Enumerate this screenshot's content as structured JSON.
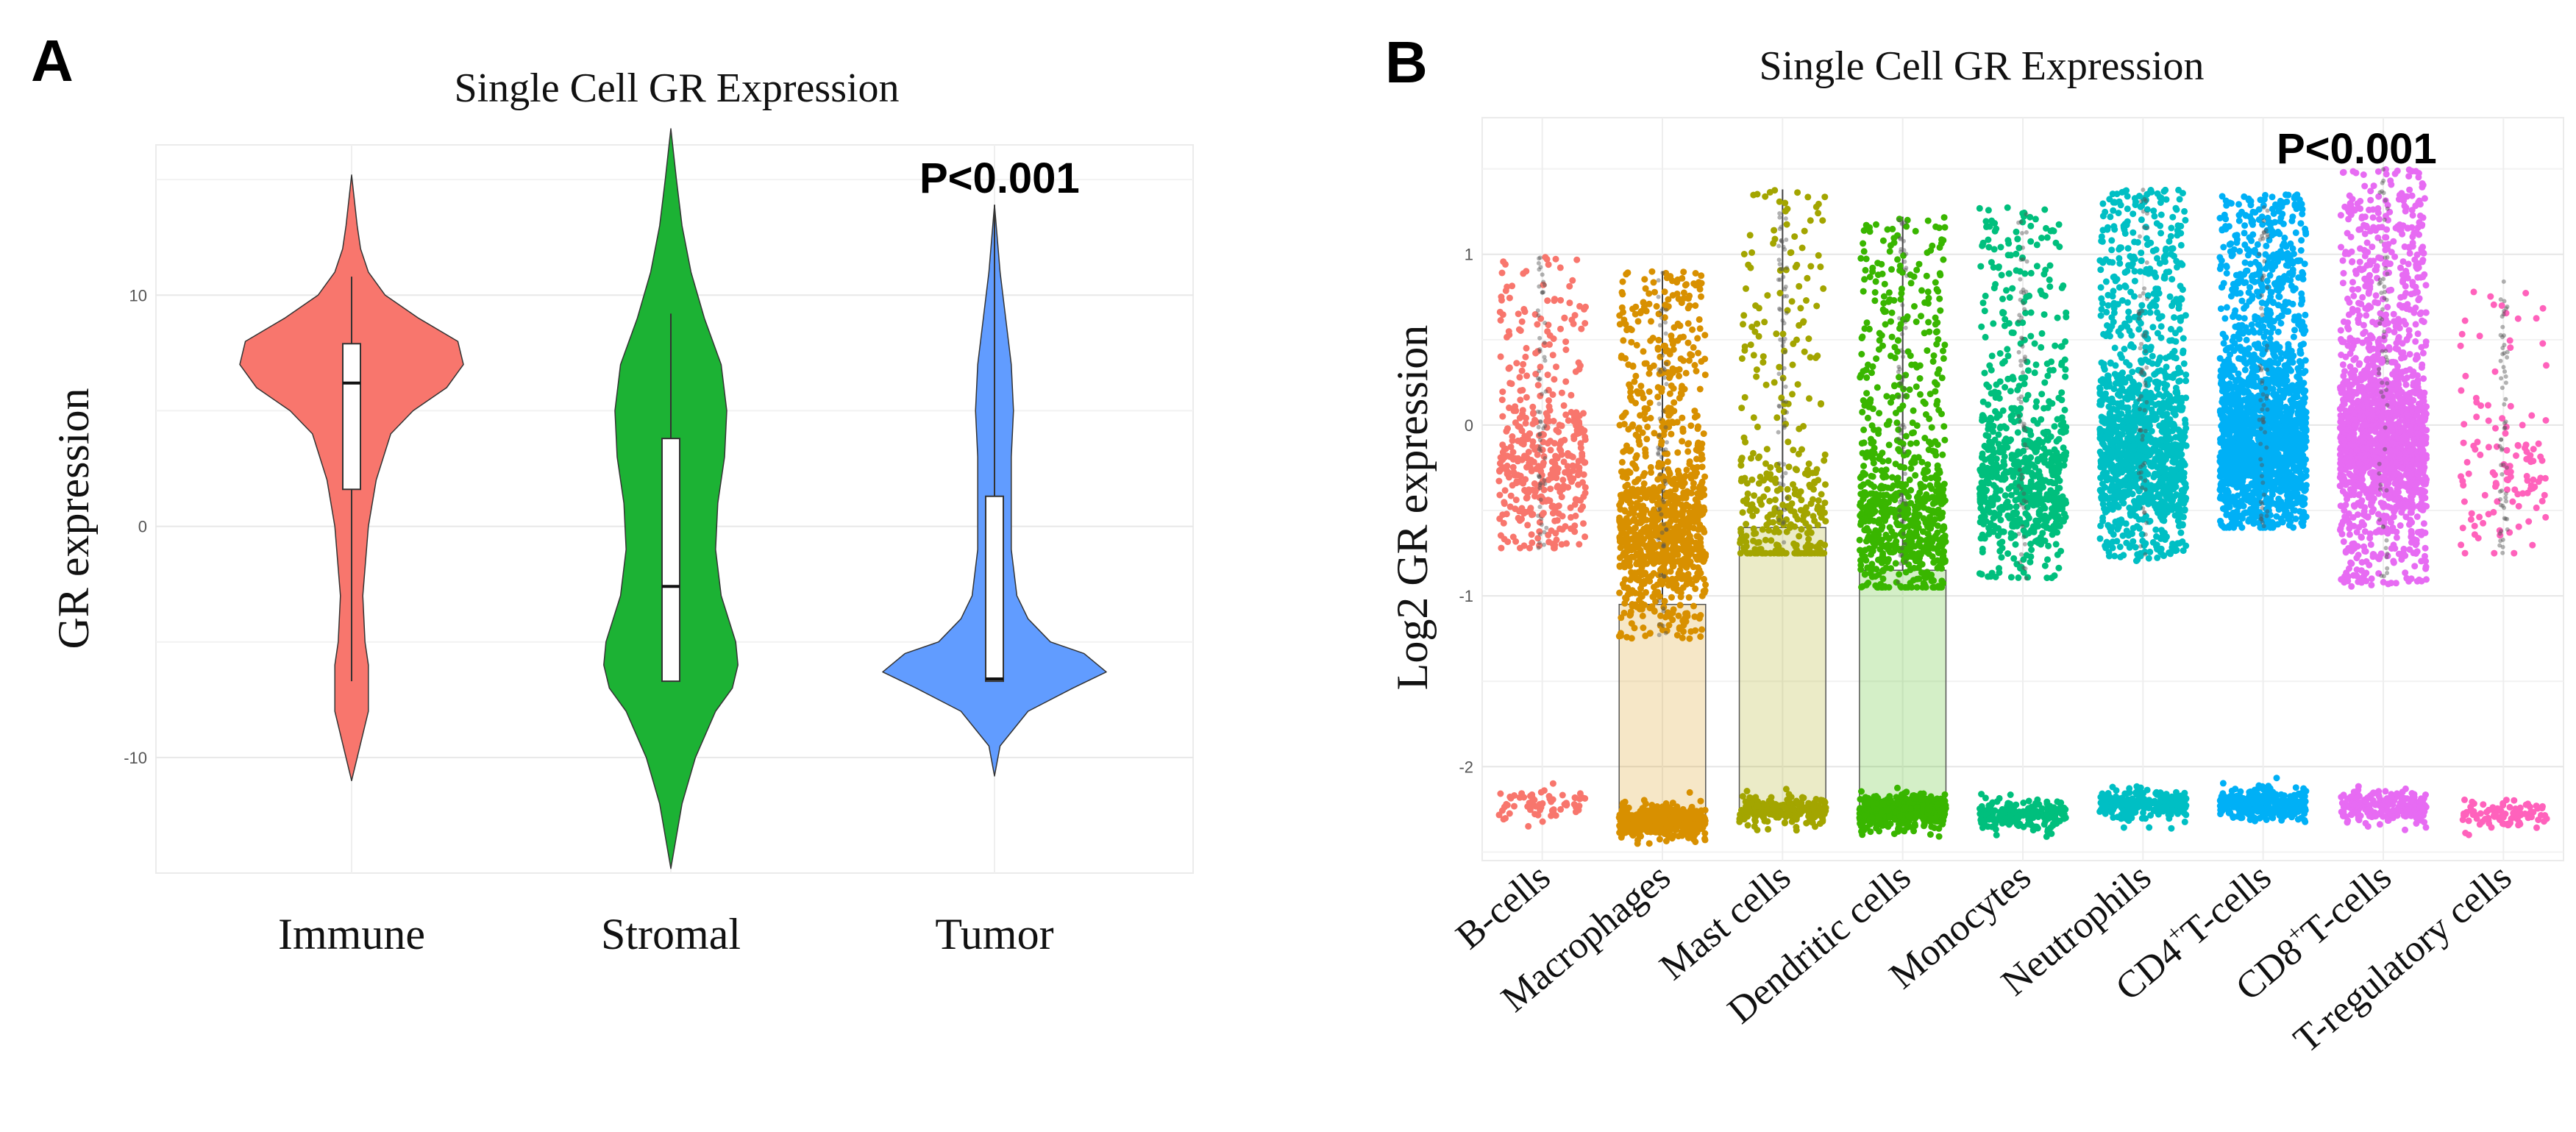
{
  "figure": {
    "panel_a_letter": "A",
    "panel_b_letter": "B"
  },
  "chart_data": [
    {
      "id": "A",
      "type": "violin",
      "title": "Single Cell GR Expression",
      "xlabel": "",
      "ylabel": "GR expression",
      "annotation": "P<0.001",
      "ylim": [
        -15,
        16.5
      ],
      "yticks": [
        10,
        0,
        -10
      ],
      "ytick_labels": [
        "10",
        "0",
        "-10"
      ],
      "categories": [
        "Immune",
        "Stromal",
        "Tumor"
      ],
      "colors": [
        "#F8766D",
        "#1CB234",
        "#619CFF"
      ],
      "violins": [
        {
          "name": "Immune",
          "min": -11,
          "max": 15.2,
          "profile": [
            [
              -11,
              0
            ],
            [
              -10,
              0.05
            ],
            [
              -8,
              0.15
            ],
            [
              -6,
              0.15
            ],
            [
              -5,
              0.12
            ],
            [
              -3,
              0.1
            ],
            [
              0,
              0.15
            ],
            [
              2,
              0.22
            ],
            [
              4,
              0.35
            ],
            [
              5,
              0.55
            ],
            [
              6,
              0.85
            ],
            [
              7,
              1.0
            ],
            [
              8,
              0.95
            ],
            [
              9,
              0.6
            ],
            [
              10,
              0.3
            ],
            [
              11,
              0.15
            ],
            [
              12,
              0.08
            ],
            [
              13,
              0.05
            ],
            [
              15.2,
              0
            ]
          ],
          "box": {
            "q1": 1.6,
            "median": 6.2,
            "q3": 7.9,
            "whisker_low": -6.7,
            "whisker_high": 10.8
          }
        },
        {
          "name": "Stromal",
          "min": -14.8,
          "max": 17.2,
          "profile": [
            [
              -14.8,
              0
            ],
            [
              -12,
              0.1
            ],
            [
              -10,
              0.22
            ],
            [
              -8,
              0.4
            ],
            [
              -7,
              0.55
            ],
            [
              -6,
              0.6
            ],
            [
              -5,
              0.58
            ],
            [
              -3,
              0.45
            ],
            [
              -1,
              0.4
            ],
            [
              1,
              0.42
            ],
            [
              3,
              0.48
            ],
            [
              5,
              0.5
            ],
            [
              7,
              0.45
            ],
            [
              9,
              0.3
            ],
            [
              11,
              0.18
            ],
            [
              13,
              0.1
            ],
            [
              15,
              0.05
            ],
            [
              17.2,
              0
            ]
          ],
          "box": {
            "q1": -6.7,
            "median": -2.6,
            "q3": 3.8,
            "whisker_low": -6.7,
            "whisker_high": 9.2
          }
        },
        {
          "name": "Tumor",
          "min": -10.8,
          "max": 13.9,
          "profile": [
            [
              -10.8,
              0
            ],
            [
              -9.5,
              0.05
            ],
            [
              -8,
              0.3
            ],
            [
              -7,
              0.7
            ],
            [
              -6.3,
              1.0
            ],
            [
              -5.5,
              0.8
            ],
            [
              -5,
              0.5
            ],
            [
              -4,
              0.3
            ],
            [
              -3,
              0.2
            ],
            [
              -1,
              0.15
            ],
            [
              1,
              0.15
            ],
            [
              3,
              0.15
            ],
            [
              5,
              0.17
            ],
            [
              7,
              0.15
            ],
            [
              9,
              0.1
            ],
            [
              11,
              0.05
            ],
            [
              13.9,
              0
            ]
          ],
          "box": {
            "q1": -6.7,
            "median": -6.6,
            "q3": 1.3,
            "whisker_low": -6.7,
            "whisker_high": 13.9
          }
        }
      ]
    },
    {
      "id": "B",
      "type": "scatter",
      "title": "Single Cell GR Expression",
      "xlabel": "",
      "ylabel": "Log2 GR expression",
      "annotation": "P<0.001",
      "ylim": [
        -2.55,
        1.8
      ],
      "yticks": [
        1,
        0,
        -1,
        -2
      ],
      "ytick_labels": [
        "1",
        "0",
        "-1",
        "-2"
      ],
      "categories": [
        "B-cells",
        "Macrophages",
        "Mast cells",
        "Dendritic  cells",
        "Monocytes",
        "Neutrophils",
        "CD4+T-cells",
        "CD8+T-cells",
        "T-regulatory cells"
      ],
      "category_label_parts": [
        {
          "pre": "B-cells",
          "sup": "",
          "post": ""
        },
        {
          "pre": "Macrophages",
          "sup": "",
          "post": ""
        },
        {
          "pre": "Mast cells",
          "sup": "",
          "post": ""
        },
        {
          "pre": "Dendritic  cells",
          "sup": "",
          "post": ""
        },
        {
          "pre": "Monocytes",
          "sup": "",
          "post": ""
        },
        {
          "pre": "Neutrophils",
          "sup": "",
          "post": ""
        },
        {
          "pre": "CD4",
          "sup": "+",
          "post": "T-cells"
        },
        {
          "pre": "CD8",
          "sup": "+",
          "post": "T-cells"
        },
        {
          "pre": "T-regulatory cells",
          "sup": "",
          "post": ""
        }
      ],
      "colors": [
        "#F8766D",
        "#D89000",
        "#A3A500",
        "#39B600",
        "#00BF7D",
        "#00BFC4",
        "#00B0F6",
        "#E76BF3",
        "#FF62BC"
      ],
      "groups": [
        {
          "name": "B-cells",
          "n_upper": 420,
          "upper_min": -0.72,
          "upper_max": 1.0,
          "upper_center": -0.25,
          "n_lower": 70,
          "lower_y": -2.22,
          "box": null
        },
        {
          "name": "Macrophages",
          "n_upper": 1000,
          "upper_min": -1.25,
          "upper_max": 0.9,
          "upper_center": -0.65,
          "n_lower": 500,
          "lower_y": -2.32,
          "box": {
            "q1": -2.28,
            "median": -2.2,
            "q3": -1.05,
            "whisker_high": 0.9
          }
        },
        {
          "name": "Mast cells",
          "n_upper": 340,
          "upper_min": -0.75,
          "upper_max": 1.38,
          "upper_center": -0.6,
          "n_lower": 200,
          "lower_y": -2.25,
          "box": {
            "q1": -2.25,
            "median": -2.2,
            "q3": -0.6,
            "whisker_high": 1.38
          }
        },
        {
          "name": "Dendritic  cells",
          "n_upper": 780,
          "upper_min": -0.95,
          "upper_max": 1.22,
          "upper_center": -0.6,
          "n_lower": 450,
          "lower_y": -2.26,
          "box": {
            "q1": -2.25,
            "median": -2.2,
            "q3": -0.85,
            "whisker_high": 1.22
          }
        },
        {
          "name": "Monocytes",
          "n_upper": 720,
          "upper_min": -0.9,
          "upper_max": 1.28,
          "upper_center": -0.35,
          "n_lower": 220,
          "lower_y": -2.28,
          "box": null
        },
        {
          "name": "Neutrophils",
          "n_upper": 1300,
          "upper_min": -0.8,
          "upper_max": 1.38,
          "upper_center": -0.15,
          "n_lower": 230,
          "lower_y": -2.22,
          "box": null
        },
        {
          "name": "CD4+T-cells",
          "n_upper": 1900,
          "upper_min": -0.6,
          "upper_max": 1.35,
          "upper_center": -0.1,
          "n_lower": 280,
          "lower_y": -2.22,
          "box": null
        },
        {
          "name": "CD8+T-cells",
          "n_upper": 1700,
          "upper_min": -0.95,
          "upper_max": 1.5,
          "upper_center": -0.1,
          "n_lower": 230,
          "lower_y": -2.24,
          "box": null
        },
        {
          "name": "T-regulatory cells",
          "n_upper": 120,
          "upper_min": -0.75,
          "upper_max": 0.85,
          "upper_center": -0.3,
          "n_lower": 90,
          "lower_y": -2.28,
          "box": null
        }
      ]
    }
  ]
}
